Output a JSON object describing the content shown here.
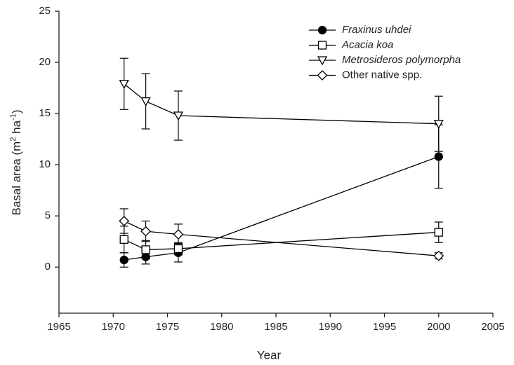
{
  "chart_data": {
    "type": "line",
    "x_label": "Year",
    "y_label_parts": [
      "Basal area (m",
      "2",
      " ha",
      "-1",
      ")"
    ],
    "xlim": [
      1965,
      2005
    ],
    "xticks": [
      1965,
      1970,
      1975,
      1980,
      1985,
      1990,
      1995,
      2000,
      2005
    ],
    "ylim": [
      -4.5,
      25
    ],
    "yticks": [
      0,
      5,
      10,
      15,
      20,
      25
    ],
    "legend": "upper right",
    "series": [
      {
        "name": "Fraxinus uhdei",
        "italic": true,
        "marker": "circle",
        "filled": true,
        "color": "#000000",
        "x": [
          1971,
          1973,
          1976,
          2000
        ],
        "values": [
          0.7,
          1.0,
          1.4,
          10.8
        ],
        "errors": [
          0.7,
          0.7,
          0.9,
          3.1
        ]
      },
      {
        "name": "Acacia koa",
        "italic": true,
        "marker": "square",
        "filled": false,
        "color": "#000000",
        "x": [
          1971,
          1973,
          1976,
          2000
        ],
        "values": [
          2.7,
          1.7,
          1.8,
          3.4
        ],
        "errors": [
          1.3,
          0.9,
          0.6,
          1.0
        ]
      },
      {
        "name": "Metrosideros polymorpha",
        "italic": true,
        "marker": "triangle-down",
        "filled": false,
        "color": "#000000",
        "x": [
          1971,
          1973,
          1976,
          2000
        ],
        "values": [
          17.9,
          16.2,
          14.8,
          14.0
        ],
        "errors": [
          2.5,
          2.7,
          2.4,
          2.7
        ]
      },
      {
        "name": "Other native spp.",
        "italic": false,
        "marker": "diamond",
        "filled": false,
        "color": "#000000",
        "x": [
          1971,
          1973,
          1976,
          2000
        ],
        "values": [
          4.5,
          3.5,
          3.2,
          1.1
        ],
        "errors": [
          1.2,
          1.0,
          1.0,
          0.3
        ]
      }
    ]
  }
}
